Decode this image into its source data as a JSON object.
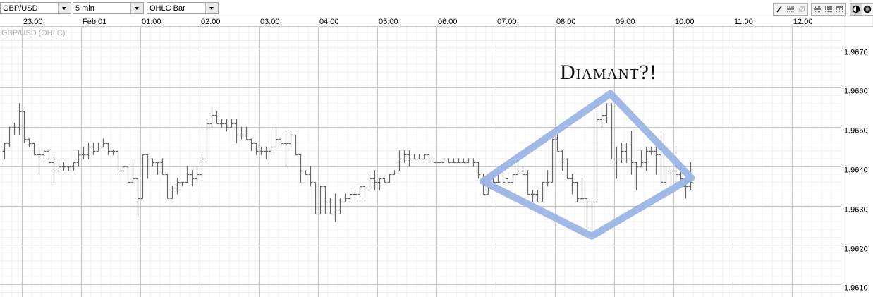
{
  "toolbar": {
    "symbol": "GBP/USD",
    "interval": "5 min",
    "chart_type": "OHLC Bar",
    "tools": [
      {
        "icon": "line-draw-icon",
        "state": "enabled"
      },
      {
        "icon": "horizontal-line-icon",
        "state": "enabled"
      },
      {
        "icon": "clear-icon",
        "state": "disabled"
      },
      {
        "icon": "grid-lines-icon-1",
        "state": "enabled"
      },
      {
        "icon": "grid-lines-icon-2",
        "state": "enabled"
      },
      {
        "icon": "grid-lines-icon-3",
        "state": "enabled"
      },
      {
        "icon": "theme-light-icon",
        "state": "active"
      },
      {
        "icon": "theme-dark-icon",
        "state": "enabled"
      }
    ]
  },
  "chart_data": {
    "type": "ohlc",
    "series_label": "GBP/USD (OHLC)",
    "annotation_text": "Diamant?!",
    "annotation_color": "#9cb5e6",
    "bar_color": "#666666",
    "grid": true,
    "ylim": [
      1.96055,
      1.96749
    ],
    "xlim": [
      "22:38",
      "12:48"
    ],
    "time_ticks": [
      {
        "t": "23:00",
        "label": "23:00"
      },
      {
        "t": "00:00",
        "label": "Feb 01"
      },
      {
        "t": "01:00",
        "label": "01:00"
      },
      {
        "t": "02:00",
        "label": "02:00"
      },
      {
        "t": "03:00",
        "label": "03:00"
      },
      {
        "t": "04:00",
        "label": "04:00"
      },
      {
        "t": "05:00",
        "label": "05:00"
      },
      {
        "t": "06:00",
        "label": "06:00"
      },
      {
        "t": "07:00",
        "label": "07:00"
      },
      {
        "t": "08:00",
        "label": "08:00"
      },
      {
        "t": "09:00",
        "label": "09:00"
      },
      {
        "t": "10:00",
        "label": "10:00"
      },
      {
        "t": "11:00",
        "label": "11:00"
      },
      {
        "t": "12:00",
        "label": "12:00"
      }
    ],
    "price_ticks": [
      "1.9610",
      "1.9620",
      "1.9630",
      "1.9640",
      "1.9650",
      "1.9660",
      "1.9670"
    ],
    "diamond": [
      {
        "t": "06:45",
        "price": 1.96362
      },
      {
        "t": "08:54",
        "price": 1.96585
      },
      {
        "t": "10:16",
        "price": 1.96371
      },
      {
        "t": "08:35",
        "price": 1.96223
      }
    ],
    "bars_columns": [
      "time",
      "open",
      "high",
      "low",
      "close"
    ],
    "bars": [
      [
        "22:40",
        1.9644,
        1.9646,
        1.9642,
        1.9646
      ],
      [
        "22:45",
        1.9646,
        1.965,
        1.9645,
        1.965
      ],
      [
        "22:50",
        1.965,
        1.9651,
        1.9648,
        1.965
      ],
      [
        "22:55",
        1.965,
        1.9656,
        1.9648,
        1.9654
      ],
      [
        "23:00",
        1.9654,
        1.9654,
        1.9646,
        1.9647
      ],
      [
        "23:05",
        1.9647,
        1.9647,
        1.9645,
        1.9646
      ],
      [
        "23:10",
        1.9646,
        1.9646,
        1.9643,
        1.9643
      ],
      [
        "23:15",
        1.9643,
        1.9645,
        1.9638,
        1.9643
      ],
      [
        "23:20",
        1.9643,
        1.9644,
        1.9642,
        1.9644
      ],
      [
        "23:25",
        1.9644,
        1.9644,
        1.9641,
        1.9641
      ],
      [
        "23:30",
        1.9641,
        1.9643,
        1.9636,
        1.9639
      ],
      [
        "23:35",
        1.9639,
        1.9641,
        1.9638,
        1.964
      ],
      [
        "23:40",
        1.964,
        1.9641,
        1.9639,
        1.964
      ],
      [
        "23:45",
        1.964,
        1.964,
        1.9639,
        1.964
      ],
      [
        "23:50",
        1.964,
        1.9641,
        1.9639,
        1.9641
      ],
      [
        "23:55",
        1.9641,
        1.9644,
        1.964,
        1.9643
      ],
      [
        "00:00",
        1.9643,
        1.9645,
        1.9642,
        1.9643
      ],
      [
        "00:05",
        1.9643,
        1.9646,
        1.9642,
        1.9645
      ],
      [
        "00:10",
        1.9645,
        1.9646,
        1.9643,
        1.9644
      ],
      [
        "00:15",
        1.9644,
        1.9646,
        1.9644,
        1.9645
      ],
      [
        "00:20",
        1.9645,
        1.9647,
        1.9645,
        1.9646
      ],
      [
        "00:25",
        1.9646,
        1.9646,
        1.9643,
        1.9644
      ],
      [
        "00:30",
        1.9644,
        1.9644,
        1.9643,
        1.9644
      ],
      [
        "00:35",
        1.9644,
        1.9644,
        1.9639,
        1.9639
      ],
      [
        "00:40",
        1.9639,
        1.964,
        1.9639,
        1.964
      ],
      [
        "00:45",
        1.964,
        1.964,
        1.9636,
        1.9636
      ],
      [
        "00:50",
        1.9636,
        1.9641,
        1.9636,
        1.9637
      ],
      [
        "00:55",
        1.9637,
        1.9637,
        1.9627,
        1.9632
      ],
      [
        "01:00",
        1.9632,
        1.9643,
        1.9632,
        1.9643
      ],
      [
        "01:05",
        1.9643,
        1.9643,
        1.9637,
        1.9642
      ],
      [
        "01:10",
        1.9642,
        1.9642,
        1.964,
        1.9641
      ],
      [
        "01:15",
        1.9641,
        1.9641,
        1.9638,
        1.9641
      ],
      [
        "01:20",
        1.9641,
        1.9642,
        1.9638,
        1.9638
      ],
      [
        "01:25",
        1.9638,
        1.9638,
        1.9632,
        1.9632
      ],
      [
        "01:30",
        1.9632,
        1.9635,
        1.9632,
        1.9634
      ],
      [
        "01:35",
        1.9634,
        1.9637,
        1.9633,
        1.9636
      ],
      [
        "01:40",
        1.9636,
        1.9636,
        1.9635,
        1.9636
      ],
      [
        "01:45",
        1.9636,
        1.964,
        1.9636,
        1.9638
      ],
      [
        "01:50",
        1.9638,
        1.9639,
        1.9635,
        1.9637
      ],
      [
        "01:55",
        1.9637,
        1.964,
        1.9636,
        1.9638
      ],
      [
        "02:00",
        1.9638,
        1.9643,
        1.9637,
        1.9642
      ],
      [
        "02:05",
        1.9642,
        1.9652,
        1.9642,
        1.9651
      ],
      [
        "02:10",
        1.9651,
        1.9655,
        1.965,
        1.9653
      ],
      [
        "02:15",
        1.9653,
        1.9654,
        1.9651,
        1.9651
      ],
      [
        "02:20",
        1.9651,
        1.9652,
        1.965,
        1.9651
      ],
      [
        "02:25",
        1.9651,
        1.9652,
        1.9649,
        1.965
      ],
      [
        "02:30",
        1.965,
        1.9652,
        1.965,
        1.9651
      ],
      [
        "02:35",
        1.9651,
        1.9652,
        1.9646,
        1.9648
      ],
      [
        "02:40",
        1.9648,
        1.965,
        1.9647,
        1.9648
      ],
      [
        "02:45",
        1.9648,
        1.965,
        1.9647,
        1.9647
      ],
      [
        "02:50",
        1.9647,
        1.9647,
        1.9644,
        1.9646
      ],
      [
        "02:55",
        1.9646,
        1.9646,
        1.9643,
        1.9644
      ],
      [
        "03:00",
        1.9644,
        1.9645,
        1.9643,
        1.9644
      ],
      [
        "03:05",
        1.9644,
        1.9645,
        1.9642,
        1.9644
      ],
      [
        "03:10",
        1.9644,
        1.9645,
        1.9643,
        1.9645
      ],
      [
        "03:15",
        1.9645,
        1.965,
        1.9645,
        1.9647
      ],
      [
        "03:20",
        1.9647,
        1.9647,
        1.9645,
        1.9646
      ],
      [
        "03:25",
        1.9646,
        1.9649,
        1.964,
        1.9646
      ],
      [
        "03:30",
        1.9646,
        1.9649,
        1.9645,
        1.9648
      ],
      [
        "03:35",
        1.9648,
        1.9648,
        1.9643,
        1.9643
      ],
      [
        "03:40",
        1.9643,
        1.9643,
        1.9636,
        1.9639
      ],
      [
        "03:45",
        1.9639,
        1.9639,
        1.9638,
        1.9638
      ],
      [
        "03:50",
        1.9638,
        1.964,
        1.9635,
        1.9636
      ],
      [
        "03:55",
        1.9636,
        1.9636,
        1.9628,
        1.9628
      ],
      [
        "04:00",
        1.9628,
        1.9635,
        1.9628,
        1.9635
      ],
      [
        "04:05",
        1.9635,
        1.9635,
        1.9628,
        1.9631
      ],
      [
        "04:10",
        1.9631,
        1.9632,
        1.9628,
        1.9628
      ],
      [
        "04:15",
        1.9628,
        1.9633,
        1.9626,
        1.9629
      ],
      [
        "04:20",
        1.9629,
        1.9632,
        1.9628,
        1.9631
      ],
      [
        "04:25",
        1.9631,
        1.9633,
        1.9631,
        1.9632
      ],
      [
        "04:30",
        1.9632,
        1.9633,
        1.9631,
        1.9633
      ],
      [
        "04:35",
        1.9633,
        1.9634,
        1.9633,
        1.9633
      ],
      [
        "04:40",
        1.9633,
        1.9635,
        1.9632,
        1.9635
      ],
      [
        "04:45",
        1.9635,
        1.9635,
        1.9632,
        1.9634
      ],
      [
        "04:50",
        1.9634,
        1.9638,
        1.9634,
        1.9637
      ],
      [
        "04:55",
        1.9637,
        1.9639,
        1.9634,
        1.9636
      ],
      [
        "05:00",
        1.9636,
        1.9637,
        1.9634,
        1.9637
      ],
      [
        "05:05",
        1.9637,
        1.9637,
        1.9636,
        1.9636
      ],
      [
        "05:10",
        1.9636,
        1.9638,
        1.9636,
        1.9638
      ],
      [
        "05:15",
        1.9638,
        1.9639,
        1.9638,
        1.9639
      ],
      [
        "05:20",
        1.9639,
        1.9644,
        1.9639,
        1.9642
      ],
      [
        "05:25",
        1.9642,
        1.9644,
        1.9641,
        1.9643
      ],
      [
        "05:30",
        1.9643,
        1.9644,
        1.964,
        1.9642
      ],
      [
        "05:35",
        1.9642,
        1.9643,
        1.9642,
        1.9642
      ],
      [
        "05:40",
        1.9642,
        1.9643,
        1.9642,
        1.9642
      ],
      [
        "05:45",
        1.9642,
        1.9643,
        1.9642,
        1.9643
      ],
      [
        "05:50",
        1.9643,
        1.9643,
        1.9641,
        1.9642
      ],
      [
        "05:55",
        1.9642,
        1.9642,
        1.9641,
        1.9641
      ],
      [
        "06:00",
        1.9641,
        1.9641,
        1.9641,
        1.9641
      ],
      [
        "06:05",
        1.9641,
        1.9642,
        1.9641,
        1.9642
      ],
      [
        "06:10",
        1.9642,
        1.9642,
        1.9641,
        1.9641
      ],
      [
        "06:15",
        1.9641,
        1.9642,
        1.9641,
        1.9641
      ],
      [
        "06:20",
        1.9641,
        1.9642,
        1.9641,
        1.9641
      ],
      [
        "06:25",
        1.9641,
        1.9642,
        1.9641,
        1.9641
      ],
      [
        "06:30",
        1.9641,
        1.9642,
        1.9641,
        1.9642
      ],
      [
        "06:35",
        1.9642,
        1.9642,
        1.964,
        1.9641
      ],
      [
        "06:40",
        1.9641,
        1.9641,
        1.9637,
        1.9638
      ],
      [
        "06:45",
        1.9636,
        1.9638,
        1.9633,
        1.9633
      ],
      [
        "06:50",
        1.9633,
        1.9638,
        1.9633,
        1.9634
      ],
      [
        "06:55",
        1.9637,
        1.9638,
        1.9636,
        1.9636
      ],
      [
        "07:00",
        1.9636,
        1.9639,
        1.9636,
        1.9636
      ],
      [
        "07:05",
        1.9639,
        1.9639,
        1.9636,
        1.9636
      ],
      [
        "07:10",
        1.9637,
        1.9637,
        1.9636,
        1.9636
      ],
      [
        "07:15",
        1.9636,
        1.9638,
        1.9636,
        1.9638
      ],
      [
        "07:20",
        1.9638,
        1.9641,
        1.9638,
        1.9639
      ],
      [
        "07:25",
        1.9639,
        1.964,
        1.9638,
        1.9638
      ],
      [
        "07:30",
        1.9638,
        1.9639,
        1.9633,
        1.9633
      ],
      [
        "07:35",
        1.9633,
        1.9634,
        1.9631,
        1.9633
      ],
      [
        "07:40",
        1.9633,
        1.9634,
        1.9631,
        1.9631
      ],
      [
        "07:45",
        1.9631,
        1.9636,
        1.9631,
        1.9636
      ],
      [
        "07:50",
        1.9636,
        1.9639,
        1.9635,
        1.9636
      ],
      [
        "07:55",
        1.9636,
        1.9647,
        1.9636,
        1.9647
      ],
      [
        "08:00",
        1.9647,
        1.9648,
        1.9644,
        1.9644
      ],
      [
        "08:05",
        1.9644,
        1.9644,
        1.9639,
        1.9642
      ],
      [
        "08:10",
        1.9642,
        1.9642,
        1.9637,
        1.9637
      ],
      [
        "08:15",
        1.9637,
        1.9638,
        1.9633,
        1.9636
      ],
      [
        "08:20",
        1.9636,
        1.9636,
        1.9631,
        1.9632
      ],
      [
        "08:25",
        1.9632,
        1.9637,
        1.9631,
        1.9632
      ],
      [
        "08:30",
        1.9632,
        1.9632,
        1.9624,
        1.9631
      ],
      [
        "08:35",
        1.9631,
        1.9631,
        1.9624,
        1.9631
      ],
      [
        "08:40",
        1.9631,
        1.9654,
        1.9631,
        1.9652
      ],
      [
        "08:45",
        1.9652,
        1.9655,
        1.965,
        1.9653
      ],
      [
        "08:50",
        1.9653,
        1.9656,
        1.9651,
        1.9656
      ],
      [
        "08:55",
        1.9656,
        1.9656,
        1.9642,
        1.9642
      ],
      [
        "09:00",
        1.9642,
        1.9645,
        1.9637,
        1.9642
      ],
      [
        "09:05",
        1.9642,
        1.9646,
        1.9641,
        1.9644
      ],
      [
        "09:10",
        1.9644,
        1.9646,
        1.9641,
        1.9642
      ],
      [
        "09:15",
        1.9642,
        1.9649,
        1.9638,
        1.9641
      ],
      [
        "09:20",
        1.9641,
        1.9641,
        1.9634,
        1.964
      ],
      [
        "09:25",
        1.964,
        1.9644,
        1.964,
        1.9641
      ],
      [
        "09:30",
        1.9641,
        1.9645,
        1.9639,
        1.9644
      ],
      [
        "09:35",
        1.9644,
        1.9645,
        1.9643,
        1.9644
      ],
      [
        "09:40",
        1.9644,
        1.9645,
        1.9638,
        1.9643
      ],
      [
        "09:45",
        1.9643,
        1.9648,
        1.9636,
        1.9636
      ],
      [
        "09:50",
        1.9636,
        1.964,
        1.9635,
        1.9639
      ],
      [
        "09:55",
        1.9639,
        1.9639,
        1.9635,
        1.9639
      ],
      [
        "10:00",
        1.9639,
        1.9645,
        1.9636,
        1.9638
      ],
      [
        "10:05",
        1.9638,
        1.9641,
        1.9636,
        1.9637
      ],
      [
        "10:10",
        1.9635,
        1.9637,
        1.9632,
        1.9635
      ],
      [
        "10:15",
        1.9635,
        1.9641,
        1.9634,
        1.9636
      ]
    ]
  }
}
